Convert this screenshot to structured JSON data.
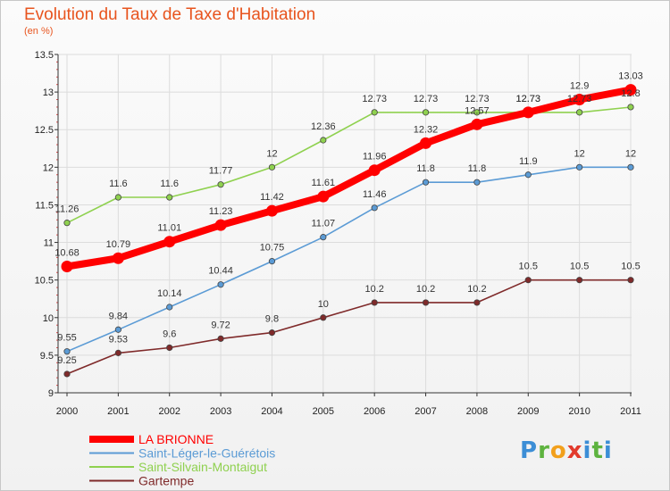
{
  "chart_data": {
    "type": "line",
    "title": "Evolution du Taux de Taxe d'Habitation",
    "unit_label": "(en %)",
    "x": [
      "2000",
      "2001",
      "2002",
      "2003",
      "2004",
      "2005",
      "2006",
      "2007",
      "2008",
      "2009",
      "2010",
      "2011"
    ],
    "ylim": [
      9,
      13.5
    ],
    "yticks": [
      "9",
      "9.5",
      "10",
      "10.5",
      "11",
      "11.5",
      "12",
      "12.5",
      "13",
      "13.5"
    ],
    "legend_position": "bottom-left",
    "series": [
      {
        "name": "LA BRIONNE",
        "color": "#ff0000",
        "values": [
          10.68,
          10.79,
          11.01,
          11.23,
          11.42,
          11.61,
          11.96,
          12.32,
          12.57,
          12.73,
          12.9,
          13.03
        ],
        "labels": [
          "10.68",
          "10.79",
          "11.01",
          "11.23",
          "11.42",
          "11.61",
          "11.96",
          "12.32",
          "12.57",
          "12.73",
          "12.9",
          "13.03"
        ]
      },
      {
        "name": "Saint-Léger-le-Guérétois",
        "color": "#5b9bd5",
        "values": [
          9.55,
          9.84,
          10.14,
          10.44,
          10.75,
          11.07,
          11.46,
          11.8,
          11.8,
          11.9,
          12,
          12
        ],
        "labels": [
          "9.55",
          "9.84",
          "10.14",
          "10.44",
          "10.75",
          "11.07",
          "11.46",
          "11.8",
          "11.8",
          "11.9",
          "12",
          "12"
        ]
      },
      {
        "name": "Saint-Silvain-Montaigut",
        "color": "#8fd14f",
        "values": [
          11.26,
          11.6,
          11.6,
          11.77,
          12,
          12.36,
          12.73,
          12.73,
          12.73,
          12.73,
          12.73,
          12.8
        ],
        "labels": [
          "11.26",
          "11.6",
          "11.6",
          "11.77",
          "12",
          "12.36",
          "12.73",
          "12.73",
          "12.73",
          "12.73",
          "12.73",
          "12.8"
        ]
      },
      {
        "name": "Gartempe",
        "color": "#7f2a2a",
        "values": [
          9.25,
          9.53,
          9.6,
          9.72,
          9.8,
          10,
          10.2,
          10.2,
          10.2,
          10.5,
          10.5,
          10.5
        ],
        "labels": [
          "9.25",
          "9.53",
          "9.6",
          "9.72",
          "9.8",
          "10",
          "10.2",
          "10.2",
          "10.2",
          "10.5",
          "10.5",
          "10.5"
        ]
      }
    ],
    "logo_text": "Proxiti"
  }
}
